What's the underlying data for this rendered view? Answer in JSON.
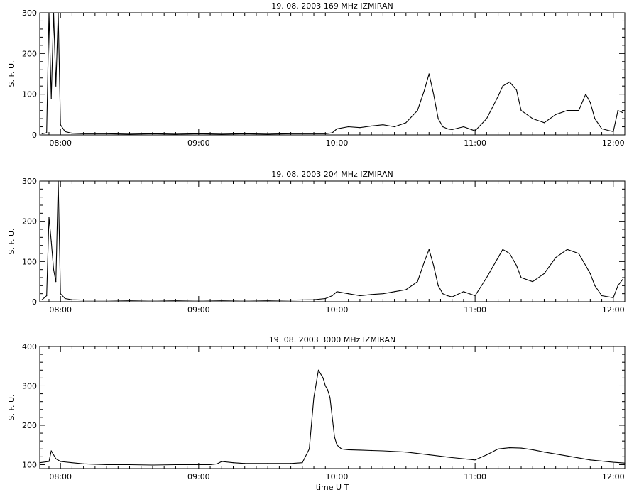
{
  "chart_data": [
    {
      "type": "line",
      "title": "19.  08.  2003    169 MHz    IZMIRAN",
      "ylabel": "S. F. U.",
      "xlabel": "",
      "xlim": [
        "07:51",
        "12:05"
      ],
      "ylim": [
        0,
        300
      ],
      "xticks": [
        "08:00",
        "09:00",
        "10:00",
        "11:00",
        "12:00"
      ],
      "yticks": [
        0,
        100,
        200,
        300
      ],
      "grid": false,
      "series": [
        {
          "x": [
            "07:52",
            "07:54",
            "07:55",
            "07:56",
            "07:57",
            "07:58",
            "07:59",
            "08:00",
            "08:02",
            "08:05",
            "08:10",
            "08:20",
            "08:30",
            "08:40",
            "08:50",
            "09:00",
            "09:10",
            "09:20",
            "09:30",
            "09:40",
            "09:50",
            "09:55",
            "09:58",
            "10:00",
            "10:05",
            "10:10",
            "10:15",
            "10:20",
            "10:25",
            "10:30",
            "10:35",
            "10:38",
            "10:40",
            "10:42",
            "10:44",
            "10:46",
            "10:48",
            "10:50",
            "10:55",
            "11:00",
            "11:05",
            "11:10",
            "11:12",
            "11:15",
            "11:18",
            "11:20",
            "11:25",
            "11:30",
            "11:35",
            "11:40",
            "11:45",
            "11:48",
            "11:50",
            "11:52",
            "11:55",
            "12:00",
            "12:02",
            "12:04"
          ],
          "y": [
            3,
            5,
            300,
            90,
            300,
            120,
            300,
            25,
            8,
            4,
            3,
            3,
            2,
            3,
            2,
            3,
            2,
            3,
            2,
            3,
            3,
            3,
            5,
            15,
            20,
            18,
            22,
            25,
            20,
            30,
            60,
            110,
            150,
            100,
            40,
            20,
            15,
            13,
            20,
            10,
            40,
            95,
            120,
            130,
            110,
            60,
            40,
            30,
            50,
            60,
            60,
            100,
            80,
            40,
            15,
            8,
            60,
            55
          ]
        }
      ]
    },
    {
      "type": "line",
      "title": "19.  08.  2003    204 MHz    IZMIRAN",
      "ylabel": "S. F. U.",
      "xlabel": "",
      "xlim": [
        "07:51",
        "12:05"
      ],
      "ylim": [
        0,
        300
      ],
      "xticks": [
        "08:00",
        "09:00",
        "10:00",
        "11:00",
        "12:00"
      ],
      "yticks": [
        0,
        100,
        200,
        300
      ],
      "grid": false,
      "series": [
        {
          "x": [
            "07:52",
            "07:54",
            "07:55",
            "07:56",
            "07:57",
            "07:58",
            "07:59",
            "08:00",
            "08:02",
            "08:05",
            "08:10",
            "08:20",
            "08:30",
            "08:40",
            "08:50",
            "09:00",
            "09:10",
            "09:20",
            "09:30",
            "09:40",
            "09:50",
            "09:55",
            "09:58",
            "10:00",
            "10:05",
            "10:10",
            "10:15",
            "10:20",
            "10:25",
            "10:30",
            "10:35",
            "10:38",
            "10:40",
            "10:42",
            "10:44",
            "10:46",
            "10:48",
            "10:50",
            "10:55",
            "11:00",
            "11:05",
            "11:10",
            "11:12",
            "11:15",
            "11:18",
            "11:20",
            "11:25",
            "11:30",
            "11:35",
            "11:40",
            "11:45",
            "11:48",
            "11:50",
            "11:52",
            "11:55",
            "12:00",
            "12:02",
            "12:04"
          ],
          "y": [
            5,
            15,
            210,
            150,
            80,
            50,
            300,
            20,
            8,
            5,
            4,
            4,
            3,
            4,
            3,
            4,
            3,
            4,
            3,
            4,
            5,
            8,
            15,
            25,
            20,
            15,
            18,
            20,
            25,
            30,
            50,
            100,
            130,
            90,
            40,
            20,
            15,
            12,
            25,
            15,
            60,
            110,
            130,
            120,
            90,
            60,
            50,
            70,
            110,
            130,
            120,
            90,
            70,
            40,
            15,
            10,
            40,
            55
          ]
        }
      ]
    },
    {
      "type": "line",
      "title": "19.  08.  2003    3000 MHz    IZMIRAN",
      "ylabel": "S. F. U.",
      "xlabel": "time   U T",
      "xlim": [
        "07:51",
        "12:05"
      ],
      "ylim": [
        90,
        400
      ],
      "xticks": [
        "08:00",
        "09:00",
        "10:00",
        "11:00",
        "12:00"
      ],
      "yticks": [
        100,
        200,
        300,
        400
      ],
      "grid": false,
      "series": [
        {
          "x": [
            "07:51",
            "07:55",
            "07:56",
            "07:58",
            "08:00",
            "08:05",
            "08:10",
            "08:20",
            "08:30",
            "08:40",
            "08:50",
            "09:00",
            "09:05",
            "09:08",
            "09:10",
            "09:15",
            "09:20",
            "09:30",
            "09:40",
            "09:45",
            "09:48",
            "09:50",
            "09:52",
            "09:54",
            "09:55",
            "09:56",
            "09:57",
            "09:58",
            "09:59",
            "10:00",
            "10:02",
            "10:05",
            "10:10",
            "10:15",
            "10:20",
            "10:30",
            "10:40",
            "10:50",
            "11:00",
            "11:05",
            "11:10",
            "11:15",
            "11:20",
            "11:25",
            "11:30",
            "11:40",
            "11:50",
            "12:00",
            "12:05"
          ],
          "y": [
            105,
            108,
            135,
            115,
            108,
            105,
            102,
            100,
            100,
            99,
            100,
            100,
            100,
            102,
            108,
            105,
            103,
            103,
            103,
            105,
            140,
            270,
            340,
            320,
            300,
            290,
            270,
            220,
            170,
            150,
            140,
            138,
            137,
            136,
            135,
            132,
            125,
            118,
            112,
            125,
            140,
            143,
            142,
            138,
            132,
            122,
            112,
            106,
            104
          ]
        }
      ]
    }
  ]
}
